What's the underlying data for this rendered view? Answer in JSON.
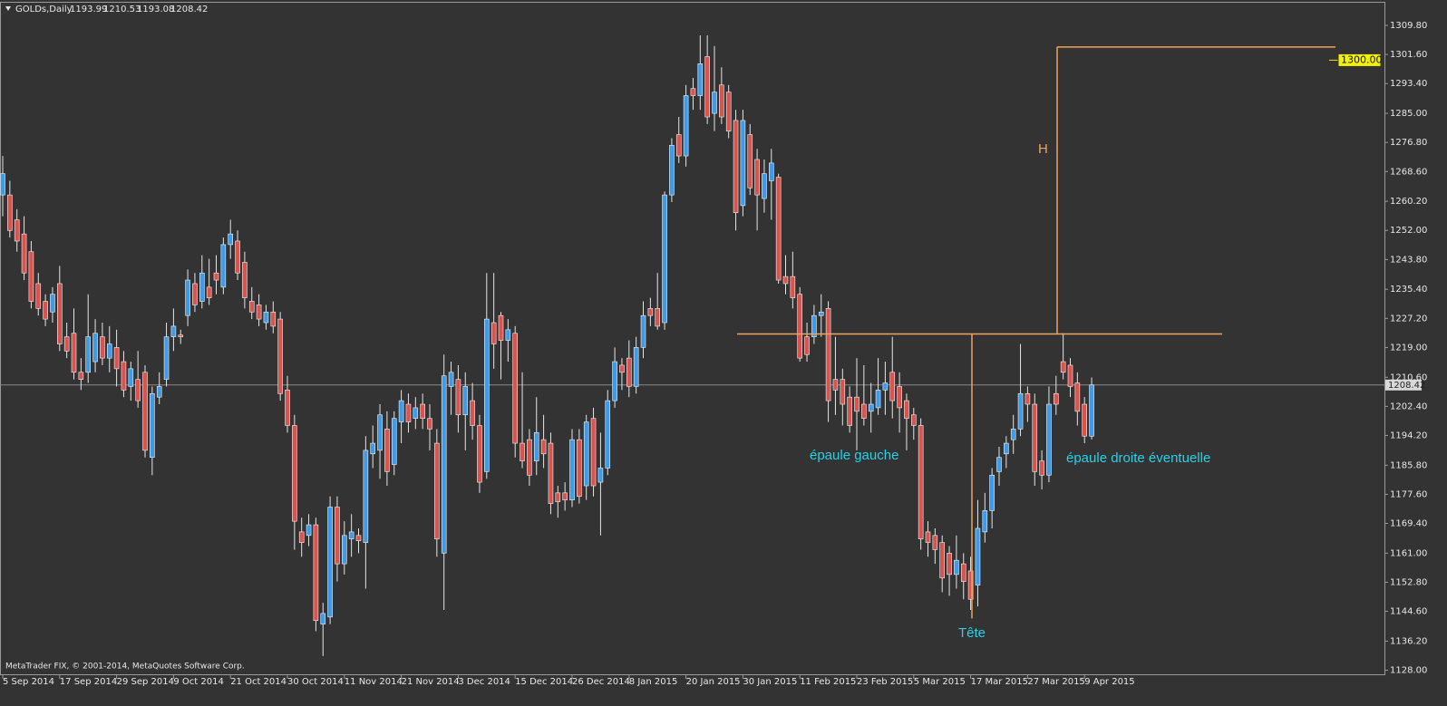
{
  "chart_data": {
    "type": "candlestick",
    "symbol": "GOLDs,Daily",
    "footer": "MetaTrader FIX, © 2001-2014, MetaQuotes Software Corp.",
    "bull_color": "#3d9be9",
    "bear_color": "#d9534f",
    "ylim": [
      1126.6,
      1316.2
    ],
    "yticks": [
      {
        "value": 1309.8,
        "label": "1309.80"
      },
      {
        "value": 1301.6,
        "label": "1301.60"
      },
      {
        "value": 1293.4,
        "label": "1293.40"
      },
      {
        "value": 1285,
        "label": "1285.00"
      },
      {
        "value": 1276.8,
        "label": "1276.80"
      },
      {
        "value": 1268.6,
        "label": "1268.60"
      },
      {
        "value": 1260.2,
        "label": "1260.20"
      },
      {
        "value": 1252,
        "label": "1252.00"
      },
      {
        "value": 1243.8,
        "label": "1243.80"
      },
      {
        "value": 1235.4,
        "label": "1235.40"
      },
      {
        "value": 1227.2,
        "label": "1227.20"
      },
      {
        "value": 1219,
        "label": "1219.00"
      },
      {
        "value": 1210.6,
        "label": "1210.60"
      },
      {
        "value": 1202.4,
        "label": "1202.40"
      },
      {
        "value": 1194.2,
        "label": "1194.20"
      },
      {
        "value": 1185.8,
        "label": "1185.80"
      },
      {
        "value": 1177.6,
        "label": "1177.60"
      },
      {
        "value": 1169.4,
        "label": "1169.40"
      },
      {
        "value": 1161,
        "label": "1161.00"
      },
      {
        "value": 1152.8,
        "label": "1152.80"
      },
      {
        "value": 1144.6,
        "label": "1144.60"
      },
      {
        "value": 1136.2,
        "label": "1136.20"
      },
      {
        "value": 1128,
        "label": "1128.00"
      }
    ],
    "categories": [
      "5 Sep 2014",
      null,
      null,
      null,
      null,
      null,
      null,
      null,
      "17 Sep 2014",
      null,
      null,
      null,
      null,
      null,
      null,
      null,
      "29 Sep 2014",
      null,
      null,
      null,
      null,
      null,
      null,
      null,
      "9 Oct 2014",
      null,
      null,
      null,
      null,
      null,
      null,
      null,
      "21 Oct 2014",
      null,
      null,
      null,
      null,
      null,
      null,
      null,
      "30 Oct 2014",
      null,
      null,
      null,
      null,
      null,
      null,
      null,
      "11 Nov 2014",
      null,
      null,
      null,
      null,
      null,
      null,
      null,
      "21 Nov 2014",
      null,
      null,
      null,
      null,
      null,
      null,
      null,
      "3 Dec 2014",
      null,
      null,
      null,
      null,
      null,
      null,
      null,
      "15 Dec 2014",
      null,
      null,
      null,
      null,
      null,
      null,
      null,
      "26 Dec 2014",
      null,
      null,
      null,
      null,
      null,
      null,
      null,
      "8 Jan 2015",
      null,
      null,
      null,
      null,
      null,
      null,
      null,
      "20 Jan 2015",
      null,
      null,
      null,
      null,
      null,
      null,
      null,
      "30 Jan 2015",
      null,
      null,
      null,
      null,
      null,
      null,
      null,
      "11 Feb 2015",
      null,
      null,
      null,
      null,
      null,
      null,
      null,
      "23 Feb 2015",
      null,
      null,
      null,
      null,
      null,
      null,
      null,
      "5 Mar 2015",
      null,
      null,
      null,
      null,
      null,
      null,
      null,
      "17 Mar 2015",
      null,
      null,
      null,
      null,
      null,
      null,
      null,
      "27 Mar 2015",
      null,
      null,
      null,
      null,
      null,
      null,
      null,
      "9 Apr 2015",
      null
    ],
    "ohlc": [
      [
        1262,
        1273,
        1256,
        1268
      ],
      [
        1262,
        1266,
        1250,
        1252
      ],
      [
        1255,
        1258,
        1246,
        1249
      ],
      [
        1251,
        1256,
        1238,
        1240
      ],
      [
        1246,
        1249,
        1230,
        1232
      ],
      [
        1237,
        1240,
        1228,
        1230
      ],
      [
        1232,
        1234,
        1225,
        1227
      ],
      [
        1229,
        1236,
        1226,
        1234
      ],
      [
        1237,
        1242,
        1218,
        1220
      ],
      [
        1222,
        1226,
        1216,
        1218
      ],
      [
        1223,
        1230,
        1210,
        1212
      ],
      [
        1212,
        1216,
        1207,
        1210
      ],
      [
        1212,
        1234,
        1209,
        1222
      ],
      [
        1215,
        1227,
        1212,
        1223
      ],
      [
        1222,
        1226,
        1214,
        1216
      ],
      [
        1216,
        1225,
        1212,
        1220
      ],
      [
        1219,
        1224,
        1208,
        1213
      ],
      [
        1215,
        1218,
        1205,
        1207
      ],
      [
        1208,
        1215,
        1204,
        1213
      ],
      [
        1210,
        1218,
        1202,
        1204
      ],
      [
        1212,
        1214,
        1188,
        1190
      ],
      [
        1188,
        1208,
        1183,
        1206
      ],
      [
        1205,
        1212,
        1203,
        1208
      ],
      [
        1210,
        1226,
        1208,
        1222
      ],
      [
        1222,
        1230,
        1218,
        1225
      ],
      [
        1222.5,
        1224,
        1220,
        1222
      ],
      [
        1228,
        1241,
        1225,
        1238
      ],
      [
        1237,
        1240,
        1229,
        1231
      ],
      [
        1232,
        1245,
        1230,
        1240
      ],
      [
        1236,
        1244,
        1231,
        1233
      ],
      [
        1240,
        1245,
        1234,
        1238
      ],
      [
        1236,
        1250,
        1234,
        1248
      ],
      [
        1248,
        1255,
        1244,
        1251
      ],
      [
        1249,
        1252,
        1238,
        1240
      ],
      [
        1243,
        1246,
        1230,
        1233
      ],
      [
        1232,
        1236,
        1227,
        1229
      ],
      [
        1231,
        1234,
        1225,
        1227
      ],
      [
        1226,
        1231,
        1224,
        1229
      ],
      [
        1229,
        1232,
        1223,
        1225
      ],
      [
        1227,
        1229,
        1204,
        1206
      ],
      [
        1207,
        1211,
        1195,
        1197
      ],
      [
        1197,
        1200,
        1162,
        1170
      ],
      [
        1167,
        1171,
        1160,
        1164
      ],
      [
        1166,
        1172,
        1163,
        1169
      ],
      [
        1169,
        1171,
        1139,
        1142
      ],
      [
        1141,
        1147,
        1132,
        1144
      ],
      [
        1143,
        1177,
        1141,
        1174
      ],
      [
        1174,
        1177,
        1153,
        1158
      ],
      [
        1158,
        1170,
        1155,
        1166
      ],
      [
        1165,
        1172,
        1160,
        1167
      ],
      [
        1166,
        1168,
        1161,
        1164.5
      ],
      [
        1164,
        1194,
        1151,
        1190
      ],
      [
        1189,
        1197,
        1185,
        1192
      ],
      [
        1190,
        1203,
        1182,
        1200
      ],
      [
        1196,
        1201,
        1180,
        1184
      ],
      [
        1186,
        1201,
        1183,
        1199
      ],
      [
        1198,
        1207,
        1192,
        1204
      ],
      [
        1203,
        1206,
        1195,
        1198
      ],
      [
        1199,
        1205,
        1196,
        1202
      ],
      [
        1203,
        1206,
        1196,
        1199
      ],
      [
        1199,
        1203,
        1190,
        1196
      ],
      [
        1192,
        1196,
        1160,
        1165
      ],
      [
        1161,
        1217,
        1145,
        1211
      ],
      [
        1208,
        1215,
        1200,
        1212
      ],
      [
        1210,
        1214,
        1195,
        1200
      ],
      [
        1200,
        1212,
        1190,
        1208
      ],
      [
        1204,
        1209,
        1193,
        1197
      ],
      [
        1197,
        1200,
        1178,
        1181
      ],
      [
        1184,
        1240,
        1182,
        1227
      ],
      [
        1226,
        1240,
        1213,
        1220
      ],
      [
        1228,
        1229,
        1210,
        1221
      ],
      [
        1221,
        1227,
        1215,
        1224
      ],
      [
        1223,
        1225,
        1188,
        1192
      ],
      [
        1192,
        1212,
        1185,
        1187
      ],
      [
        1193,
        1196,
        1180,
        1183
      ],
      [
        1187,
        1205,
        1183,
        1195
      ],
      [
        1193,
        1200,
        1185,
        1189
      ],
      [
        1192,
        1195,
        1172,
        1175
      ],
      [
        1178,
        1180,
        1171,
        1175.5
      ],
      [
        1178,
        1181,
        1173,
        1176
      ],
      [
        1176,
        1196,
        1174,
        1193
      ],
      [
        1193,
        1196,
        1175,
        1177
      ],
      [
        1180,
        1200,
        1176,
        1198
      ],
      [
        1199,
        1202,
        1177,
        1180
      ],
      [
        1181,
        1195,
        1166,
        1185
      ],
      [
        1185,
        1207,
        1183,
        1204
      ],
      [
        1204,
        1219,
        1202,
        1215
      ],
      [
        1214,
        1216,
        1207,
        1212
      ],
      [
        1216,
        1221,
        1205,
        1208
      ],
      [
        1208,
        1222,
        1206,
        1219
      ],
      [
        1219,
        1232,
        1216,
        1228
      ],
      [
        1230,
        1233,
        1225,
        1228
      ],
      [
        1230,
        1240,
        1224,
        1225
      ],
      [
        1226,
        1263,
        1224,
        1262
      ],
      [
        1262,
        1278,
        1260,
        1276
      ],
      [
        1279,
        1284,
        1271,
        1273
      ],
      [
        1273,
        1293,
        1270,
        1290
      ],
      [
        1292,
        1295,
        1286,
        1290
      ],
      [
        1290,
        1307,
        1286,
        1299
      ],
      [
        1301,
        1307,
        1282,
        1284
      ],
      [
        1285,
        1304,
        1280,
        1291
      ],
      [
        1293,
        1298,
        1282,
        1284
      ],
      [
        1291,
        1293,
        1278,
        1280
      ],
      [
        1283,
        1286,
        1252,
        1257
      ],
      [
        1259,
        1286,
        1256,
        1283
      ],
      [
        1279,
        1282,
        1262,
        1264
      ],
      [
        1272,
        1275,
        1252,
        1262
      ],
      [
        1261,
        1272,
        1257,
        1268
      ],
      [
        1266,
        1275,
        1255,
        1271
      ],
      [
        1267,
        1268,
        1237,
        1238
      ],
      [
        1239,
        1245,
        1234,
        1237
      ],
      [
        1239,
        1246,
        1230,
        1233
      ],
      [
        1234,
        1236,
        1215,
        1216
      ],
      [
        1222,
        1226,
        1215,
        1217
      ],
      [
        1222,
        1231,
        1220,
        1228
      ],
      [
        1228,
        1234,
        1222,
        1229
      ],
      [
        1230,
        1232,
        1198,
        1204
      ],
      [
        1210,
        1222,
        1200,
        1207
      ],
      [
        1210,
        1213,
        1197,
        1203
      ],
      [
        1205,
        1208,
        1195,
        1197
      ],
      [
        1205,
        1216,
        1190,
        1201
      ],
      [
        1203,
        1214,
        1197,
        1199
      ],
      [
        1201,
        1209,
        1195,
        1203
      ],
      [
        1202,
        1216,
        1200,
        1207
      ],
      [
        1207,
        1215,
        1200,
        1209
      ],
      [
        1212,
        1222,
        1199,
        1204
      ],
      [
        1208,
        1212,
        1195,
        1202
      ],
      [
        1204,
        1206,
        1190,
        1199
      ],
      [
        1200,
        1202,
        1193,
        1197
      ],
      [
        1197,
        1199,
        1162,
        1165
      ],
      [
        1167,
        1170,
        1160,
        1164
      ],
      [
        1166,
        1168,
        1158,
        1162
      ],
      [
        1164,
        1166,
        1150,
        1154
      ],
      [
        1161,
        1163,
        1149,
        1155
      ],
      [
        1155,
        1166,
        1151,
        1159
      ],
      [
        1158,
        1161,
        1148,
        1153
      ],
      [
        1156,
        1160,
        1145,
        1148
      ],
      [
        1152,
        1176,
        1146,
        1168
      ],
      [
        1167,
        1178,
        1164,
        1173
      ],
      [
        1173,
        1185,
        1168,
        1183
      ],
      [
        1184,
        1191,
        1180,
        1188
      ],
      [
        1189,
        1194,
        1185,
        1192
      ],
      [
        1193,
        1200,
        1189,
        1196
      ],
      [
        1196,
        1220,
        1194,
        1206
      ],
      [
        1206,
        1208,
        1198,
        1203
      ],
      [
        1203,
        1206,
        1180,
        1184
      ],
      [
        1187,
        1190,
        1179,
        1183
      ],
      [
        1183,
        1208,
        1181,
        1203
      ],
      [
        1206,
        1211,
        1200,
        1203
      ],
      [
        1215,
        1223,
        1210,
        1212
      ],
      [
        1214,
        1216,
        1205,
        1208
      ],
      [
        1209,
        1212,
        1197,
        1201
      ],
      [
        1203,
        1205,
        1192,
        1194
      ],
      [
        1193.99,
        1210.53,
        1193.08,
        1208.42
      ]
    ],
    "levels": {
      "neckline": 1222.8,
      "head_low": 1142.6,
      "projection_top": 1303.7,
      "target": {
        "value": 1300,
        "label": "1300.00"
      }
    },
    "annotations": {
      "left_shoulder": "épaule gauche",
      "head": "Tête",
      "right_shoulder": "épaule droite éventuelle",
      "height": "H"
    }
  }
}
